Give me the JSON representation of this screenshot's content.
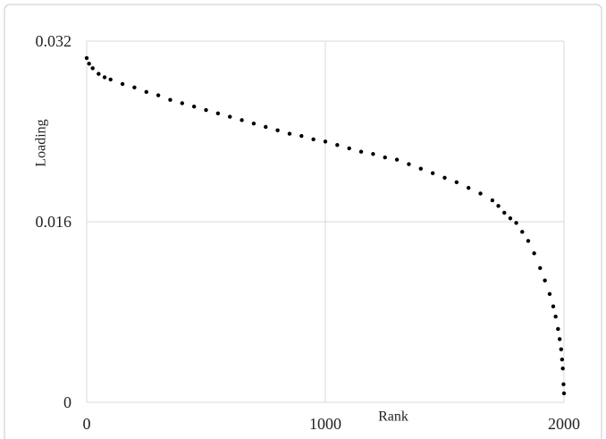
{
  "chart_data": {
    "type": "scatter",
    "x_label": "Rank",
    "y_label": "Loading",
    "x": [
      0,
      10,
      25,
      50,
      75,
      100,
      150,
      200,
      250,
      300,
      350,
      400,
      450,
      500,
      550,
      600,
      650,
      700,
      750,
      800,
      850,
      900,
      950,
      1000,
      1050,
      1100,
      1150,
      1200,
      1250,
      1300,
      1350,
      1400,
      1450,
      1500,
      1550,
      1600,
      1650,
      1700,
      1725,
      1750,
      1775,
      1800,
      1825,
      1850,
      1875,
      1900,
      1920,
      1940,
      1955,
      1965,
      1975,
      1982,
      1988,
      1992,
      1995,
      1998,
      2000
    ],
    "values": [
      0.0305,
      0.03,
      0.0296,
      0.0291,
      0.0288,
      0.0286,
      0.0282,
      0.0279,
      0.0275,
      0.0272,
      0.0268,
      0.0265,
      0.0262,
      0.0259,
      0.0256,
      0.0253,
      0.025,
      0.0247,
      0.0244,
      0.0241,
      0.0238,
      0.0236,
      0.0233,
      0.0231,
      0.0228,
      0.0225,
      0.0222,
      0.022,
      0.0217,
      0.0215,
      0.0211,
      0.0207,
      0.0203,
      0.0199,
      0.0195,
      0.019,
      0.0185,
      0.0179,
      0.0174,
      0.0168,
      0.0163,
      0.0159,
      0.0151,
      0.0143,
      0.0132,
      0.0119,
      0.0108,
      0.0096,
      0.0085,
      0.0076,
      0.0065,
      0.0056,
      0.0047,
      0.0038,
      0.003,
      0.0016,
      0.0008
    ],
    "color": "#000000",
    "xlim": [
      0,
      2000
    ],
    "xticks": [
      0,
      1000,
      2000
    ],
    "ylim": [
      0,
      0.032
    ],
    "yticks": [
      0,
      0.016,
      0.032
    ],
    "grid": true
  }
}
